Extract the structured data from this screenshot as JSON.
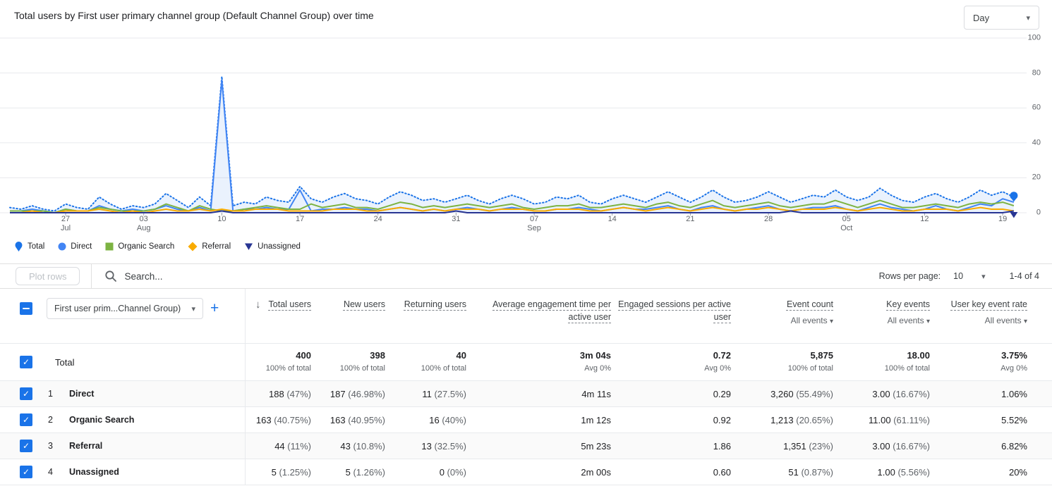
{
  "header": {
    "title": "Total users by First user primary channel group (Default Channel Group) over time",
    "granularity_value": "Day"
  },
  "chart": {
    "y_ticks": [
      100,
      80,
      60,
      40,
      20,
      0
    ],
    "x_ticks": [
      {
        "i": 5,
        "day": "27",
        "month": "Jul"
      },
      {
        "i": 12,
        "day": "03",
        "month": "Aug"
      },
      {
        "i": 19,
        "day": "10"
      },
      {
        "i": 26,
        "day": "17"
      },
      {
        "i": 33,
        "day": "24"
      },
      {
        "i": 40,
        "day": "31"
      },
      {
        "i": 47,
        "day": "07",
        "month": "Sep"
      },
      {
        "i": 54,
        "day": "14"
      },
      {
        "i": 61,
        "day": "21"
      },
      {
        "i": 68,
        "day": "28"
      },
      {
        "i": 75,
        "day": "05",
        "month": "Oct"
      },
      {
        "i": 82,
        "day": "12"
      },
      {
        "i": 89,
        "day": "19"
      }
    ],
    "legend": [
      {
        "label": "Total",
        "shape": "pin",
        "color": "#1a73e8"
      },
      {
        "label": "Direct",
        "shape": "circle",
        "color": "#4285f4"
      },
      {
        "label": "Organic Search",
        "shape": "square",
        "color": "#7cb342"
      },
      {
        "label": "Referral",
        "shape": "diamond",
        "color": "#f9ab00"
      },
      {
        "label": "Unassigned",
        "shape": "triangle-down",
        "color": "#283593"
      }
    ],
    "chart_data": {
      "type": "line",
      "title": "Total users by First user primary channel group (Default Channel Group) over time",
      "x_unit": "day",
      "x_range": [
        "Jul 22",
        "Oct 20"
      ],
      "ylim": [
        0,
        100
      ],
      "grid": true,
      "legend_position": "bottom",
      "series": [
        {
          "name": "Total",
          "color": "#1a73e8",
          "style": "dotted",
          "fill": true,
          "end_marker": "pin",
          "values": [
            3,
            2,
            4,
            2,
            1,
            5,
            3,
            2,
            9,
            5,
            2,
            4,
            3,
            5,
            11,
            7,
            3,
            9,
            4,
            78,
            4,
            6,
            5,
            9,
            7,
            6,
            15,
            8,
            6,
            9,
            11,
            8,
            7,
            5,
            9,
            12,
            10,
            7,
            8,
            6,
            8,
            10,
            7,
            5,
            8,
            10,
            8,
            5,
            6,
            9,
            8,
            10,
            6,
            5,
            8,
            10,
            8,
            6,
            9,
            12,
            9,
            6,
            9,
            13,
            9,
            6,
            7,
            9,
            12,
            9,
            6,
            8,
            10,
            9,
            13,
            9,
            7,
            9,
            14,
            10,
            7,
            6,
            9,
            11,
            8,
            6,
            9,
            13,
            10,
            12,
            9
          ]
        },
        {
          "name": "Direct",
          "color": "#4285f4",
          "style": "solid",
          "fill": false,
          "values": [
            1,
            1,
            2,
            1,
            0,
            2,
            1,
            1,
            4,
            2,
            1,
            2,
            1,
            2,
            4,
            2,
            1,
            3,
            1,
            76,
            1,
            2,
            2,
            3,
            2,
            2,
            13,
            1,
            2,
            2,
            3,
            2,
            2,
            1,
            2,
            3,
            2,
            1,
            2,
            1,
            2,
            3,
            2,
            1,
            2,
            3,
            2,
            1,
            1,
            2,
            2,
            3,
            2,
            1,
            2,
            3,
            2,
            2,
            3,
            4,
            2,
            1,
            3,
            4,
            2,
            1,
            2,
            3,
            4,
            2,
            1,
            2,
            3,
            3,
            4,
            2,
            1,
            3,
            5,
            3,
            2,
            1,
            2,
            4,
            2,
            1,
            3,
            5,
            4,
            8,
            6
          ]
        },
        {
          "name": "Organic Search",
          "color": "#7cb342",
          "style": "solid",
          "fill": false,
          "values": [
            1,
            1,
            1,
            1,
            0,
            2,
            1,
            1,
            3,
            2,
            1,
            1,
            1,
            2,
            5,
            3,
            1,
            4,
            2,
            1,
            1,
            2,
            3,
            4,
            3,
            2,
            2,
            5,
            3,
            4,
            5,
            3,
            3,
            2,
            4,
            6,
            5,
            3,
            4,
            3,
            4,
            5,
            4,
            3,
            4,
            5,
            3,
            2,
            3,
            4,
            4,
            5,
            3,
            3,
            4,
            5,
            4,
            3,
            5,
            6,
            4,
            3,
            5,
            7,
            4,
            3,
            4,
            5,
            6,
            4,
            3,
            4,
            5,
            5,
            7,
            5,
            3,
            5,
            7,
            5,
            3,
            3,
            4,
            5,
            4,
            3,
            5,
            6,
            5,
            6,
            4
          ]
        },
        {
          "name": "Referral",
          "color": "#f9ab00",
          "style": "solid",
          "fill": false,
          "values": [
            0,
            0,
            1,
            0,
            0,
            1,
            1,
            1,
            2,
            1,
            0,
            1,
            0,
            1,
            2,
            1,
            1,
            2,
            1,
            2,
            1,
            1,
            2,
            2,
            2,
            1,
            1,
            1,
            1,
            2,
            2,
            2,
            1,
            1,
            2,
            3,
            2,
            1,
            2,
            1,
            2,
            2,
            2,
            1,
            2,
            2,
            2,
            1,
            1,
            2,
            2,
            2,
            1,
            1,
            2,
            3,
            2,
            1,
            2,
            3,
            2,
            1,
            2,
            3,
            2,
            1,
            2,
            2,
            3,
            2,
            1,
            2,
            2,
            2,
            3,
            2,
            1,
            2,
            3,
            2,
            1,
            1,
            2,
            2,
            2,
            1,
            2,
            3,
            2,
            2,
            1
          ]
        },
        {
          "name": "Unassigned",
          "color": "#283593",
          "style": "solid",
          "fill": false,
          "end_marker": "triangle-down",
          "values": [
            0,
            0,
            0,
            0,
            0,
            0,
            0,
            0,
            0,
            0,
            0,
            0,
            0,
            0,
            0,
            0,
            0,
            0,
            0,
            1,
            0,
            0,
            0,
            0,
            0,
            0,
            0,
            0,
            0,
            0,
            0,
            0,
            0,
            0,
            0,
            0,
            0,
            0,
            0,
            0,
            1,
            0,
            0,
            0,
            0,
            0,
            0,
            0,
            0,
            0,
            0,
            0,
            0,
            0,
            0,
            0,
            0,
            0,
            0,
            0,
            0,
            0,
            0,
            0,
            0,
            0,
            0,
            0,
            0,
            0,
            1,
            0,
            0,
            0,
            0,
            0,
            0,
            0,
            0,
            0,
            0,
            0,
            0,
            0,
            0,
            0,
            0,
            0,
            0,
            0,
            1
          ]
        }
      ]
    }
  },
  "toolbar": {
    "plot_rows_label": "Plot rows",
    "search_placeholder": "Search...",
    "rows_per_page_label": "Rows per page:",
    "rows_per_page_value": "10",
    "range_text": "1-4 of 4"
  },
  "table": {
    "dimension_dropdown_label": "First user prim...Channel Group)",
    "columns": [
      {
        "label": "Total users"
      },
      {
        "label": "New users"
      },
      {
        "label": "Returning users"
      },
      {
        "label": "Average engagement time per active user"
      },
      {
        "label": "Engaged sessions per active user"
      },
      {
        "label": "Event count",
        "filter": "All events"
      },
      {
        "label": "Key events",
        "filter": "All events"
      },
      {
        "label": "User key event rate",
        "filter": "All events"
      }
    ],
    "total_row": {
      "label": "Total",
      "cells": [
        {
          "value": "400",
          "sub": "100% of total"
        },
        {
          "value": "398",
          "sub": "100% of total"
        },
        {
          "value": "40",
          "sub": "100% of total"
        },
        {
          "value": "3m 04s",
          "sub": "Avg 0%"
        },
        {
          "value": "0.72",
          "sub": "Avg 0%"
        },
        {
          "value": "5,875",
          "sub": "100% of total"
        },
        {
          "value": "18.00",
          "sub": "100% of total"
        },
        {
          "value": "3.75%",
          "sub": "Avg 0%"
        }
      ]
    },
    "rows": [
      {
        "num": "1",
        "label": "Direct",
        "cells": [
          {
            "value": "188",
            "share": "(47%)"
          },
          {
            "value": "187",
            "share": "(46.98%)"
          },
          {
            "value": "11",
            "share": "(27.5%)"
          },
          {
            "value": "4m 11s"
          },
          {
            "value": "0.29"
          },
          {
            "value": "3,260",
            "share": "(55.49%)"
          },
          {
            "value": "3.00",
            "share": "(16.67%)"
          },
          {
            "value": "1.06%"
          }
        ]
      },
      {
        "num": "2",
        "label": "Organic Search",
        "cells": [
          {
            "value": "163",
            "share": "(40.75%)"
          },
          {
            "value": "163",
            "share": "(40.95%)"
          },
          {
            "value": "16",
            "share": "(40%)"
          },
          {
            "value": "1m 12s"
          },
          {
            "value": "0.92"
          },
          {
            "value": "1,213",
            "share": "(20.65%)"
          },
          {
            "value": "11.00",
            "share": "(61.11%)"
          },
          {
            "value": "5.52%"
          }
        ]
      },
      {
        "num": "3",
        "label": "Referral",
        "cells": [
          {
            "value": "44",
            "share": "(11%)"
          },
          {
            "value": "43",
            "share": "(10.8%)"
          },
          {
            "value": "13",
            "share": "(32.5%)"
          },
          {
            "value": "5m 23s"
          },
          {
            "value": "1.86"
          },
          {
            "value": "1,351",
            "share": "(23%)"
          },
          {
            "value": "3.00",
            "share": "(16.67%)"
          },
          {
            "value": "6.82%"
          }
        ]
      },
      {
        "num": "4",
        "label": "Unassigned",
        "cells": [
          {
            "value": "5",
            "share": "(1.25%)"
          },
          {
            "value": "5",
            "share": "(1.26%)"
          },
          {
            "value": "0",
            "share": "(0%)"
          },
          {
            "value": "2m 00s"
          },
          {
            "value": "0.60"
          },
          {
            "value": "51",
            "share": "(0.87%)"
          },
          {
            "value": "1.00",
            "share": "(5.56%)"
          },
          {
            "value": "20%"
          }
        ]
      }
    ]
  }
}
